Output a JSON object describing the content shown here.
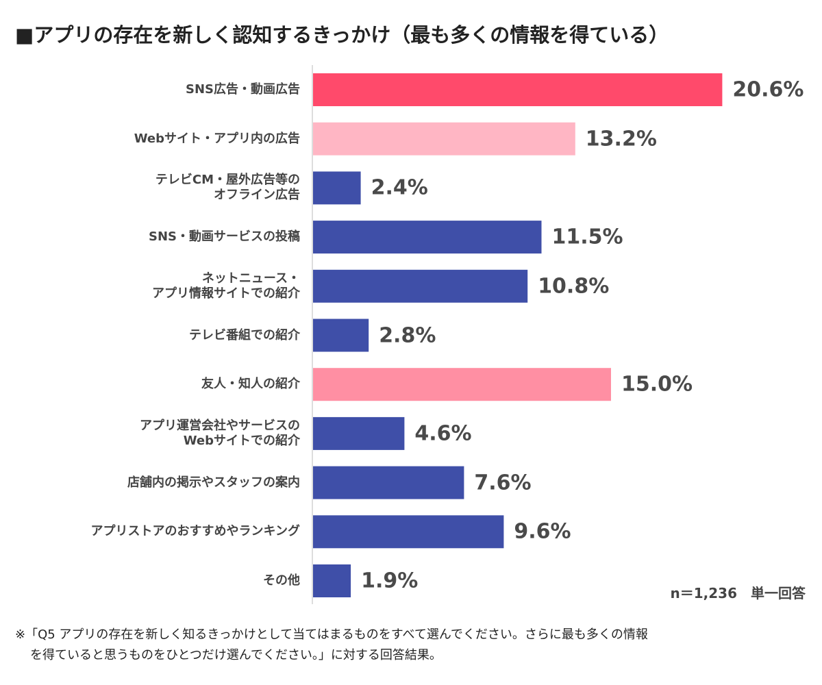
{
  "title": "■アプリの存在を新しく認知するきっかけ（最も多くの情報を得ている）",
  "chart_data": {
    "type": "bar",
    "orientation": "horizontal",
    "title": "■アプリの存在を新しく認知するきっかけ（最も多くの情報を得ている）",
    "categories": [
      "SNS広告・動画広告",
      "Webサイト・アプリ内の広告",
      "テレビCM・屋外広告等の\nオフライン広告",
      "SNS・動画サービスの投稿",
      "ネットニュース・\nアプリ情報サイトでの紹介",
      "テレビ番組での紹介",
      "友人・知人の紹介",
      "アプリ運営会社やサービスの\nWebサイトでの紹介",
      "店舗内の掲示やスタッフの案内",
      "アプリストアのおすすめやランキング",
      "その他"
    ],
    "values": [
      20.6,
      13.2,
      2.4,
      11.5,
      10.8,
      2.8,
      15.0,
      4.6,
      7.6,
      9.6,
      1.9
    ],
    "value_labels": [
      "20.6%",
      "13.2%",
      "2.4%",
      "11.5%",
      "10.8%",
      "2.8%",
      "15.0%",
      "4.6%",
      "7.6%",
      "9.6%",
      "1.9%"
    ],
    "colors": [
      "#ff4a6b",
      "#ffb6c4",
      "#3f4fa8",
      "#3f4fa8",
      "#3f4fa8",
      "#3f4fa8",
      "#ff8fa3",
      "#3f4fa8",
      "#3f4fa8",
      "#3f4fa8",
      "#3f4fa8"
    ],
    "unit": "%",
    "grid": false,
    "axis_line_color": "#dddddd"
  },
  "sample_note": "n＝1,236　単一回答",
  "footnote": {
    "line1": "※「Q5 アプリの存在を新しく知るきっかけとして当てはまるものをすべて選んでください。さらに最も多くの情報",
    "line2": "を得ていると思うものをひとつだけ選んでください。」に対する回答結果。"
  }
}
